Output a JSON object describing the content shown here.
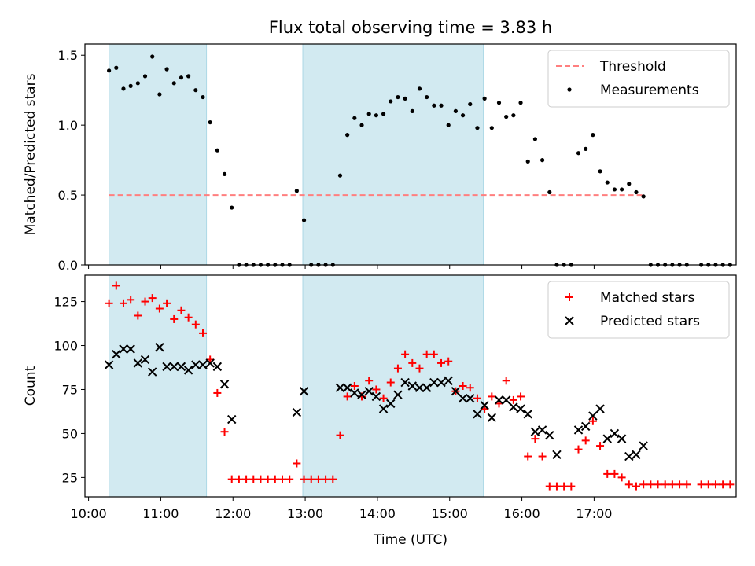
{
  "chart_data": {
    "title": "Flux total observing time = 3.83 h",
    "xlabel": "Time (UTC)",
    "x_ticks": [
      "10:00",
      "11:00",
      "12:00",
      "13:00",
      "14:00",
      "15:00",
      "16:00",
      "17:00"
    ],
    "shaded_intervals": [
      [
        "10:17",
        "11:38"
      ],
      [
        "12:58",
        "15:28"
      ]
    ],
    "shade_color": "#add8e6",
    "panels": [
      {
        "type": "scatter",
        "ylabel": "Matched/Predicted stars",
        "ylim": [
          0,
          1.58
        ],
        "yticks": [
          "0.0",
          "0.5",
          "1.0",
          "1.5"
        ],
        "legend_position": "top-right",
        "threshold": {
          "name": "Threshold",
          "value": 0.5,
          "x_range": [
            "10:17",
            "17:40"
          ],
          "color": "#ff7f7f",
          "style": "dashed"
        },
        "series": [
          {
            "name": "Measurements",
            "marker": "dot",
            "color": "#000000",
            "points": [
              [
                "10:17",
                1.39
              ],
              [
                "10:23",
                1.41
              ],
              [
                "10:29",
                1.26
              ],
              [
                "10:35",
                1.28
              ],
              [
                "10:41",
                1.3
              ],
              [
                "10:47",
                1.35
              ],
              [
                "10:53",
                1.49
              ],
              [
                "10:59",
                1.22
              ],
              [
                "11:05",
                1.4
              ],
              [
                "11:11",
                1.3
              ],
              [
                "11:17",
                1.34
              ],
              [
                "11:23",
                1.35
              ],
              [
                "11:29",
                1.25
              ],
              [
                "11:35",
                1.2
              ],
              [
                "11:41",
                1.02
              ],
              [
                "11:47",
                0.82
              ],
              [
                "11:53",
                0.65
              ],
              [
                "11:59",
                0.41
              ],
              [
                "12:05",
                0.0
              ],
              [
                "12:11",
                0.0
              ],
              [
                "12:17",
                0.0
              ],
              [
                "12:23",
                0.0
              ],
              [
                "12:29",
                0.0
              ],
              [
                "12:35",
                0.0
              ],
              [
                "12:41",
                0.0
              ],
              [
                "12:47",
                0.0
              ],
              [
                "12:53",
                0.53
              ],
              [
                "12:59",
                0.32
              ],
              [
                "13:05",
                0.0
              ],
              [
                "13:11",
                0.0
              ],
              [
                "13:17",
                0.0
              ],
              [
                "13:23",
                0.0
              ],
              [
                "13:29",
                0.64
              ],
              [
                "13:35",
                0.93
              ],
              [
                "13:41",
                1.05
              ],
              [
                "13:47",
                1.0
              ],
              [
                "13:53",
                1.08
              ],
              [
                "13:59",
                1.07
              ],
              [
                "14:05",
                1.08
              ],
              [
                "14:11",
                1.17
              ],
              [
                "14:17",
                1.2
              ],
              [
                "14:23",
                1.19
              ],
              [
                "14:29",
                1.1
              ],
              [
                "14:35",
                1.26
              ],
              [
                "14:41",
                1.2
              ],
              [
                "14:47",
                1.14
              ],
              [
                "14:53",
                1.14
              ],
              [
                "14:59",
                1.0
              ],
              [
                "15:05",
                1.1
              ],
              [
                "15:11",
                1.07
              ],
              [
                "15:17",
                1.15
              ],
              [
                "15:23",
                0.98
              ],
              [
                "15:29",
                1.19
              ],
              [
                "15:35",
                0.98
              ],
              [
                "15:41",
                1.16
              ],
              [
                "15:47",
                1.06
              ],
              [
                "15:53",
                1.07
              ],
              [
                "15:59",
                1.16
              ],
              [
                "16:05",
                0.74
              ],
              [
                "16:11",
                0.9
              ],
              [
                "16:17",
                0.75
              ],
              [
                "16:23",
                0.52
              ],
              [
                "16:29",
                0.0
              ],
              [
                "16:35",
                0.0
              ],
              [
                "16:41",
                0.0
              ],
              [
                "16:47",
                0.8
              ],
              [
                "16:53",
                0.83
              ],
              [
                "16:59",
                0.93
              ],
              [
                "17:05",
                0.67
              ],
              [
                "17:11",
                0.59
              ],
              [
                "17:17",
                0.54
              ],
              [
                "17:23",
                0.54
              ],
              [
                "17:29",
                0.58
              ],
              [
                "17:35",
                0.52
              ],
              [
                "17:41",
                0.49
              ],
              [
                "17:47",
                0.0
              ],
              [
                "17:53",
                0.0
              ],
              [
                "17:59",
                0.0
              ],
              [
                "18:05",
                0.0
              ],
              [
                "18:11",
                0.0
              ],
              [
                "18:17",
                0.0
              ],
              [
                "18:29",
                0.0
              ],
              [
                "18:35",
                0.0
              ],
              [
                "18:41",
                0.0
              ],
              [
                "18:47",
                0.0
              ],
              [
                "18:53",
                0.0
              ]
            ]
          }
        ]
      },
      {
        "type": "scatter",
        "ylabel": "Count",
        "ylim": [
          14,
          140
        ],
        "yticks": [
          "25",
          "50",
          "75",
          "100",
          "125"
        ],
        "legend_position": "top-right",
        "series": [
          {
            "name": "Matched stars",
            "marker": "plus",
            "color": "#ff0000",
            "points": [
              [
                "10:17",
                124
              ],
              [
                "10:23",
                134
              ],
              [
                "10:29",
                124
              ],
              [
                "10:35",
                126
              ],
              [
                "10:41",
                117
              ],
              [
                "10:47",
                125
              ],
              [
                "10:53",
                127
              ],
              [
                "10:59",
                121
              ],
              [
                "11:05",
                124
              ],
              [
                "11:11",
                115
              ],
              [
                "11:17",
                120
              ],
              [
                "11:23",
                116
              ],
              [
                "11:29",
                112
              ],
              [
                "11:35",
                107
              ],
              [
                "11:41",
                92
              ],
              [
                "11:47",
                73
              ],
              [
                "11:53",
                51
              ],
              [
                "11:59",
                24
              ],
              [
                "12:05",
                24
              ],
              [
                "12:11",
                24
              ],
              [
                "12:17",
                24
              ],
              [
                "12:23",
                24
              ],
              [
                "12:29",
                24
              ],
              [
                "12:35",
                24
              ],
              [
                "12:41",
                24
              ],
              [
                "12:47",
                24
              ],
              [
                "12:53",
                33
              ],
              [
                "12:59",
                24
              ],
              [
                "13:05",
                24
              ],
              [
                "13:11",
                24
              ],
              [
                "13:17",
                24
              ],
              [
                "13:23",
                24
              ],
              [
                "13:29",
                49
              ],
              [
                "13:35",
                71
              ],
              [
                "13:41",
                77
              ],
              [
                "13:47",
                71
              ],
              [
                "13:53",
                80
              ],
              [
                "13:59",
                75
              ],
              [
                "14:05",
                70
              ],
              [
                "14:11",
                79
              ],
              [
                "14:17",
                87
              ],
              [
                "14:23",
                95
              ],
              [
                "14:29",
                90
              ],
              [
                "14:35",
                87
              ],
              [
                "14:41",
                95
              ],
              [
                "14:47",
                95
              ],
              [
                "14:53",
                90
              ],
              [
                "14:59",
                91
              ],
              [
                "15:05",
                74
              ],
              [
                "15:11",
                77
              ],
              [
                "15:17",
                76
              ],
              [
                "15:23",
                70
              ],
              [
                "15:29",
                64
              ],
              [
                "15:35",
                71
              ],
              [
                "15:41",
                67
              ],
              [
                "15:47",
                80
              ],
              [
                "15:53",
                69
              ],
              [
                "15:59",
                71
              ],
              [
                "16:05",
                37
              ],
              [
                "16:11",
                47
              ],
              [
                "16:17",
                37
              ],
              [
                "16:23",
                20
              ],
              [
                "16:29",
                20
              ],
              [
                "16:35",
                20
              ],
              [
                "16:41",
                20
              ],
              [
                "16:47",
                41
              ],
              [
                "16:53",
                46
              ],
              [
                "16:59",
                57
              ],
              [
                "17:05",
                43
              ],
              [
                "17:11",
                27
              ],
              [
                "17:17",
                27
              ],
              [
                "17:23",
                25
              ],
              [
                "17:29",
                21
              ],
              [
                "17:35",
                20
              ],
              [
                "17:41",
                21
              ],
              [
                "17:47",
                21
              ],
              [
                "17:53",
                21
              ],
              [
                "17:59",
                21
              ],
              [
                "18:05",
                21
              ],
              [
                "18:11",
                21
              ],
              [
                "18:17",
                21
              ],
              [
                "18:29",
                21
              ],
              [
                "18:35",
                21
              ],
              [
                "18:41",
                21
              ],
              [
                "18:47",
                21
              ],
              [
                "18:53",
                21
              ]
            ]
          },
          {
            "name": "Predicted stars",
            "marker": "x",
            "color": "#000000",
            "points": [
              [
                "10:17",
                89
              ],
              [
                "10:23",
                95
              ],
              [
                "10:29",
                98
              ],
              [
                "10:35",
                98
              ],
              [
                "10:41",
                90
              ],
              [
                "10:47",
                92
              ],
              [
                "10:53",
                85
              ],
              [
                "10:59",
                99
              ],
              [
                "11:05",
                88
              ],
              [
                "11:11",
                88
              ],
              [
                "11:17",
                88
              ],
              [
                "11:23",
                86
              ],
              [
                "11:29",
                89
              ],
              [
                "11:35",
                89
              ],
              [
                "11:41",
                90
              ],
              [
                "11:47",
                88
              ],
              [
                "11:53",
                78
              ],
              [
                "11:59",
                58
              ],
              [
                "12:53",
                62
              ],
              [
                "12:59",
                74
              ],
              [
                "13:29",
                76
              ],
              [
                "13:35",
                76
              ],
              [
                "13:41",
                73
              ],
              [
                "13:47",
                72
              ],
              [
                "13:53",
                74
              ],
              [
                "13:59",
                71
              ],
              [
                "14:05",
                64
              ],
              [
                "14:11",
                67
              ],
              [
                "14:17",
                72
              ],
              [
                "14:23",
                79
              ],
              [
                "14:29",
                77
              ],
              [
                "14:35",
                76
              ],
              [
                "14:41",
                76
              ],
              [
                "14:47",
                79
              ],
              [
                "14:53",
                79
              ],
              [
                "14:59",
                80
              ],
              [
                "15:05",
                74
              ],
              [
                "15:11",
                70
              ],
              [
                "15:17",
                70
              ],
              [
                "15:23",
                61
              ],
              [
                "15:29",
                66
              ],
              [
                "15:35",
                59
              ],
              [
                "15:41",
                69
              ],
              [
                "15:47",
                69
              ],
              [
                "15:53",
                65
              ],
              [
                "15:59",
                64
              ],
              [
                "16:05",
                61
              ],
              [
                "16:11",
                51
              ],
              [
                "16:17",
                52
              ],
              [
                "16:23",
                49
              ],
              [
                "16:29",
                38
              ],
              [
                "16:47",
                52
              ],
              [
                "16:53",
                54
              ],
              [
                "16:59",
                60
              ],
              [
                "17:05",
                64
              ],
              [
                "17:11",
                47
              ],
              [
                "17:17",
                50
              ],
              [
                "17:23",
                47
              ],
              [
                "17:29",
                37
              ],
              [
                "17:35",
                38
              ],
              [
                "17:41",
                43
              ]
            ]
          }
        ]
      }
    ]
  }
}
